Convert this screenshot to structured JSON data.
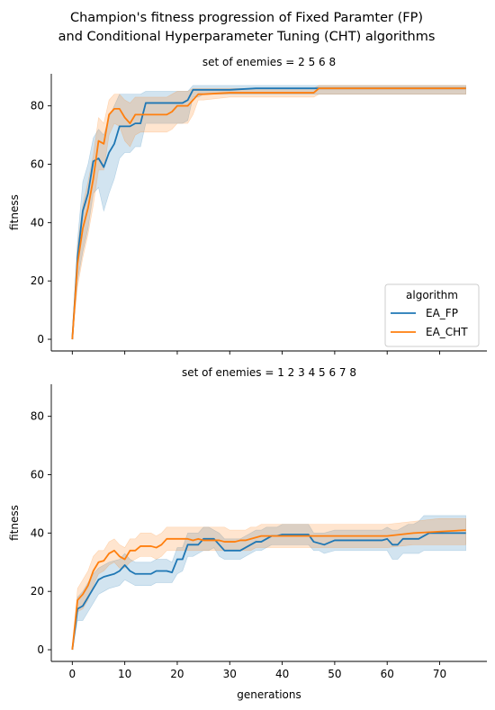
{
  "figure": {
    "title_line1": "Champion's fitness progression of Fixed Paramter (FP)",
    "title_line2": "and Conditional Hyperparameter Tuning (CHT) algorithms"
  },
  "legend": {
    "title": "algorithm",
    "entries": [
      {
        "name": "EA_FP",
        "color": "#1f77b4"
      },
      {
        "name": "EA_CHT",
        "color": "#ff7f0e"
      }
    ],
    "placement": "lower-right of top panel"
  },
  "chart_data": [
    {
      "type": "line",
      "title": "set of enemies   = 2 5 6 8",
      "xlabel": "",
      "ylabel": "fitness",
      "xlim": [
        -4,
        79
      ],
      "ylim": [
        -4,
        91
      ],
      "xticks": [
        0,
        10,
        20,
        30,
        40,
        50,
        60,
        70
      ],
      "yticks": [
        0,
        20,
        40,
        60,
        80
      ],
      "show_x_tick_labels": false,
      "grid": false,
      "series": [
        {
          "name": "EA_FP",
          "color": "#1f77b4",
          "x": [
            0,
            1,
            2,
            3,
            4,
            5,
            6,
            7,
            8,
            9,
            10,
            11,
            12,
            13,
            14,
            15,
            16,
            17,
            18,
            19,
            20,
            21,
            22,
            23,
            24,
            25,
            30,
            35,
            40,
            45,
            50,
            55,
            60,
            65,
            70,
            75
          ],
          "mean": [
            0,
            28,
            44,
            50,
            61,
            62,
            59,
            64,
            67,
            73,
            73,
            73,
            74,
            74,
            81,
            81,
            81,
            81,
            81,
            81,
            81,
            81,
            82,
            85.5,
            85.5,
            85.5,
            85.5,
            86,
            86,
            86,
            86,
            86,
            86,
            86,
            86,
            86
          ],
          "lower": [
            0,
            20,
            30,
            38,
            50,
            52,
            44,
            50,
            55,
            62,
            64,
            64,
            66,
            66,
            74,
            74,
            74,
            74,
            74,
            74,
            74,
            74,
            75,
            83,
            83,
            84,
            84,
            84,
            84,
            84,
            84,
            84,
            84,
            84,
            84,
            84
          ],
          "upper": [
            0,
            34,
            54,
            60,
            69,
            72,
            70,
            76,
            80,
            84,
            84,
            84,
            84,
            84,
            85,
            85,
            85,
            85,
            85,
            85,
            85,
            85,
            85,
            87,
            87,
            87,
            87,
            87,
            87,
            87,
            87,
            87,
            87,
            87,
            87,
            87
          ]
        },
        {
          "name": "EA_CHT",
          "color": "#ff7f0e",
          "x": [
            0,
            1,
            2,
            3,
            4,
            5,
            6,
            7,
            8,
            9,
            10,
            11,
            12,
            13,
            14,
            15,
            16,
            17,
            18,
            19,
            20,
            21,
            22,
            23,
            24,
            25,
            30,
            35,
            40,
            45,
            46,
            47,
            50,
            55,
            60,
            65,
            70,
            75
          ],
          "mean": [
            0,
            26,
            38,
            45,
            55,
            68,
            67,
            77,
            79,
            79,
            76,
            74,
            77,
            77,
            77,
            77,
            77,
            77,
            77,
            78,
            80,
            80,
            80,
            82,
            84,
            84,
            84.5,
            84.5,
            84.5,
            84.5,
            84.5,
            86,
            86,
            86,
            86,
            86,
            86,
            86
          ],
          "lower": [
            0,
            18,
            28,
            36,
            46,
            58,
            58,
            70,
            74,
            73,
            68,
            66,
            70,
            71,
            71,
            71,
            71,
            71,
            71,
            72,
            74,
            74,
            74,
            77,
            82,
            82,
            83,
            83,
            83,
            83,
            83,
            84,
            84,
            84,
            84,
            84,
            84,
            84
          ],
          "upper": [
            0,
            32,
            46,
            54,
            63,
            76,
            74,
            82,
            84,
            84,
            82,
            81,
            83,
            83,
            83,
            83,
            83,
            83,
            83,
            84,
            85,
            85,
            85,
            86,
            86,
            86,
            86,
            86,
            86,
            86,
            86,
            87,
            87,
            87,
            87,
            87,
            87,
            87
          ]
        }
      ]
    },
    {
      "type": "line",
      "title": "set of enemies   = 1 2 3 4 5 6 7 8",
      "xlabel": "generations",
      "ylabel": "fitness",
      "xlim": [
        -4,
        79
      ],
      "ylim": [
        -4,
        91
      ],
      "xticks": [
        0,
        10,
        20,
        30,
        40,
        50,
        60,
        70
      ],
      "yticks": [
        0,
        20,
        40,
        60,
        80
      ],
      "show_x_tick_labels": true,
      "grid": false,
      "series": [
        {
          "name": "EA_FP",
          "color": "#1f77b4",
          "x": [
            0,
            1,
            2,
            3,
            4,
            5,
            6,
            7,
            8,
            9,
            10,
            11,
            12,
            13,
            14,
            15,
            16,
            17,
            18,
            19,
            20,
            21,
            22,
            23,
            24,
            25,
            26,
            27,
            28,
            29,
            30,
            31,
            32,
            33,
            34,
            35,
            36,
            37,
            38,
            39,
            40,
            45,
            46,
            47,
            48,
            50,
            55,
            58,
            59,
            60,
            61,
            62,
            63,
            64,
            65,
            66,
            67,
            68,
            70,
            75
          ],
          "mean": [
            0,
            14,
            15,
            18,
            21,
            24,
            25,
            25.5,
            26,
            27,
            29,
            27,
            26,
            26,
            26,
            26,
            27,
            27,
            27,
            26.5,
            31,
            31,
            36,
            36,
            36,
            38,
            38,
            38,
            36,
            34,
            34,
            34,
            34,
            35,
            36,
            37,
            37,
            38,
            39,
            39,
            39.5,
            39.5,
            37,
            36.5,
            36,
            37.5,
            37.5,
            37.5,
            37.5,
            38,
            36,
            36,
            38,
            38,
            38,
            38,
            39,
            40,
            40,
            40
          ],
          "lower": [
            0,
            10,
            10,
            13,
            16,
            19,
            20,
            21,
            21.5,
            22,
            24,
            23,
            22,
            22,
            22,
            22,
            23,
            23,
            23,
            23,
            26,
            27,
            32,
            32,
            33,
            34,
            34,
            35,
            32,
            31,
            31,
            31,
            31,
            32,
            33,
            34,
            34,
            35,
            36,
            36,
            36,
            36,
            34,
            34,
            33,
            34,
            34,
            34,
            34,
            34,
            31,
            31,
            33,
            33,
            33,
            33,
            34,
            34,
            34,
            34
          ],
          "upper": [
            0,
            18,
            20,
            23,
            26,
            28,
            29,
            30,
            30.5,
            31,
            33,
            31,
            30,
            30,
            30,
            30,
            31,
            31,
            31,
            30,
            35,
            35,
            40,
            40,
            40,
            42,
            42,
            41,
            40,
            38,
            38,
            38,
            38,
            39,
            40,
            41,
            41,
            42,
            42,
            42,
            43,
            43,
            40,
            40,
            40,
            41,
            41,
            41,
            41,
            42,
            41,
            41,
            42,
            43,
            43,
            44,
            46,
            46,
            46,
            46
          ]
        },
        {
          "name": "EA_CHT",
          "color": "#ff7f0e",
          "x": [
            0,
            1,
            2,
            3,
            4,
            5,
            6,
            7,
            8,
            9,
            10,
            11,
            12,
            13,
            14,
            15,
            16,
            17,
            18,
            19,
            20,
            21,
            22,
            23,
            24,
            25,
            26,
            27,
            28,
            29,
            30,
            31,
            32,
            33,
            34,
            35,
            36,
            37,
            38,
            39,
            40,
            45,
            50,
            55,
            60,
            65,
            70,
            75
          ],
          "mean": [
            0,
            17,
            19,
            22,
            27,
            30,
            30.5,
            33,
            34,
            32,
            31,
            34,
            34,
            35.5,
            35.5,
            35.5,
            35,
            36,
            38,
            38,
            38,
            38,
            38,
            37.5,
            38,
            37.5,
            37.5,
            37.5,
            37.5,
            37,
            37,
            37,
            37.5,
            37.5,
            38,
            38.5,
            39,
            39,
            39,
            39,
            39,
            39,
            39,
            39,
            39,
            40,
            40.5,
            41
          ],
          "lower": [
            0,
            13,
            14,
            17,
            22,
            26,
            27,
            29,
            30,
            28,
            28,
            30,
            31,
            32,
            32,
            32,
            31,
            32,
            34,
            34,
            34,
            34,
            34,
            34,
            34,
            34,
            34,
            34,
            34,
            34,
            34,
            34,
            34,
            34,
            34,
            35,
            35,
            35,
            35,
            35,
            35,
            35,
            35,
            35,
            35,
            36,
            36,
            36
          ],
          "upper": [
            0,
            21,
            24,
            27,
            32,
            34,
            34,
            37,
            38,
            36,
            35,
            38,
            38,
            40,
            40,
            40,
            39,
            40,
            42,
            42,
            42,
            42,
            42,
            42,
            42,
            42,
            42,
            42,
            42,
            42,
            41,
            41,
            41,
            41,
            42,
            42,
            43,
            43,
            43,
            43,
            43,
            43,
            43,
            43,
            43,
            44,
            45,
            45
          ]
        }
      ]
    }
  ]
}
